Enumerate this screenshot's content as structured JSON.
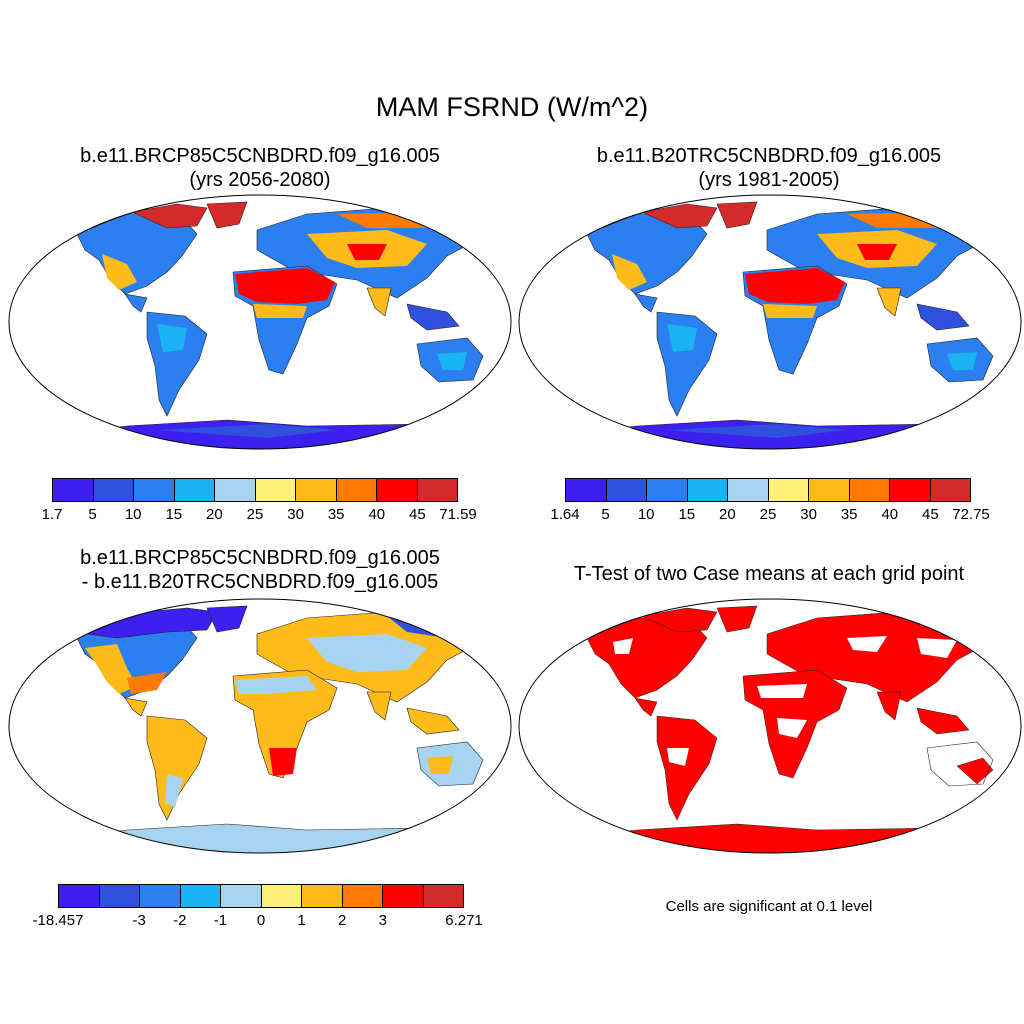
{
  "title": "MAM FSRND (W/m^2)",
  "panels": {
    "top_left": {
      "title_line1": "b.e11.BRCP85C5CNBDRD.f09_g16.005",
      "title_line2": "(yrs 2056-2080)",
      "colorbar": {
        "colors": [
          "#3d1ff0",
          "#3050e0",
          "#2b7ff0",
          "#1ab4f5",
          "#a6d4f0",
          "#fff07a",
          "#ffbb1a",
          "#ff7a00",
          "#ff0000",
          "#d42a2a"
        ],
        "labels": [
          "1.7",
          "5",
          "10",
          "15",
          "20",
          "25",
          "30",
          "35",
          "40",
          "45",
          "71.59"
        ]
      }
    },
    "top_right": {
      "title_line1": "b.e11.B20TRC5CNBDRD.f09_g16.005",
      "title_line2": "(yrs 1981-2005)",
      "colorbar": {
        "colors": [
          "#3d1ff0",
          "#3050e0",
          "#2b7ff0",
          "#1ab4f5",
          "#a6d4f0",
          "#fff07a",
          "#ffbb1a",
          "#ff7a00",
          "#ff0000",
          "#d42a2a"
        ],
        "labels": [
          "1.64",
          "5",
          "10",
          "15",
          "20",
          "25",
          "30",
          "35",
          "40",
          "45",
          "72.75"
        ]
      }
    },
    "bottom_left": {
      "title_line1": "b.e11.BRCP85C5CNBDRD.f09_g16.005",
      "title_line2": "- b.e11.B20TRC5CNBDRD.f09_g16.005",
      "colorbar": {
        "colors": [
          "#3d1ff0",
          "#3050e0",
          "#2b7ff0",
          "#1ab4f5",
          "#a6d4f0",
          "#fff07a",
          "#ffbb1a",
          "#ff7a00",
          "#ff0000",
          "#d42a2a"
        ],
        "labels": [
          "-18.457",
          "",
          "-3",
          "-2",
          "-1",
          "0",
          "1",
          "2",
          "3",
          "",
          "6.271"
        ]
      }
    },
    "bottom_right": {
      "title_line1": "T-Test of two Case means at each grid point",
      "note": "Cells are significant at 0.1 level",
      "sig_color": "#ff0000"
    }
  }
}
